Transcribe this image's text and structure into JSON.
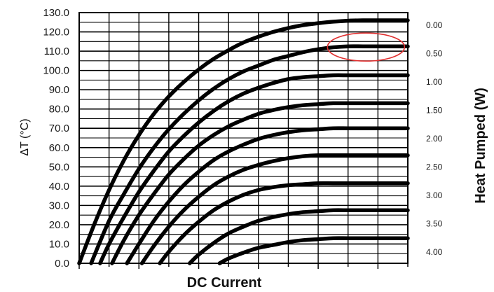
{
  "chart_data": {
    "type": "line",
    "xlabel": "DC Current",
    "ylabel": "ΔT (°C)",
    "y2label": "Heat Pumped (W)",
    "ylim": [
      0,
      130
    ],
    "yticks": [
      "0.0",
      "10.0",
      "20.0",
      "30.0",
      "40.0",
      "50.0",
      "60.0",
      "70.0",
      "80.0",
      "90.0",
      "100.0",
      "110.0",
      "120.0",
      "130.0"
    ],
    "xlim": [
      0,
      11
    ],
    "x_tick_labels_shown": false,
    "grid": true,
    "right_tick_labels": [
      "0.00",
      "0.50",
      "1.00",
      "1.50",
      "2.00",
      "2.50",
      "3.00",
      "3.50",
      "4.00"
    ],
    "series": [
      {
        "name": "0.00",
        "x": [
          0,
          0.5,
          1,
          1.5,
          2,
          2.5,
          3,
          3.5,
          4,
          4.5,
          5,
          5.5,
          6,
          6.5,
          7,
          7.5,
          8,
          8.5,
          9,
          9.5,
          10,
          10.5,
          11
        ],
        "values": [
          0,
          20,
          38,
          53.5,
          66.5,
          77.5,
          86.5,
          94,
          100.5,
          106,
          110.5,
          114.5,
          117.5,
          120,
          122,
          123.5,
          124.5,
          125.3,
          125.8,
          126,
          126,
          126,
          126
        ]
      },
      {
        "name": "0.50",
        "x": [
          0.4,
          1,
          1.5,
          2,
          2.5,
          3,
          3.5,
          4,
          4.5,
          5,
          5.5,
          6,
          6.5,
          7,
          7.5,
          8,
          8.5,
          9,
          9.5,
          10,
          10.5,
          11
        ],
        "values": [
          0,
          22,
          36,
          49,
          60,
          69.5,
          77.5,
          84.5,
          90.5,
          95.5,
          99.5,
          102.5,
          105.5,
          107.5,
          109.5,
          111,
          112,
          112.5,
          112.5,
          112.5,
          112.5,
          112.5
        ]
      },
      {
        "name": "1.00",
        "x": [
          0.7,
          1,
          1.5,
          2,
          2.5,
          3,
          3.5,
          4,
          4.5,
          5,
          5.5,
          6,
          6.5,
          7,
          7.5,
          8,
          8.5,
          9,
          9.5,
          10,
          10.5,
          11
        ],
        "values": [
          0,
          10,
          24,
          37,
          48,
          58,
          66,
          73,
          79,
          84,
          88,
          91,
          93.5,
          95.5,
          96.5,
          97,
          97.5,
          97.5,
          97.5,
          97.5,
          97.5,
          97.5
        ]
      },
      {
        "name": "1.50",
        "x": [
          1.1,
          1.5,
          2,
          2.5,
          3,
          3.5,
          4,
          4.5,
          5,
          5.5,
          6,
          6.5,
          7,
          7.5,
          8,
          8.5,
          9,
          9.5,
          10,
          10.5,
          11
        ],
        "values": [
          0,
          12,
          25,
          36,
          46,
          54,
          61,
          66.5,
          71,
          74.5,
          77.5,
          79.5,
          81,
          82,
          82.5,
          83,
          83,
          83,
          83,
          83,
          83
        ]
      },
      {
        "name": "2.00",
        "x": [
          1.6,
          2,
          2.5,
          3,
          3.5,
          4,
          4.5,
          5,
          5.5,
          6,
          6.5,
          7,
          7.5,
          8,
          8.5,
          9,
          9.5,
          10,
          10.5,
          11
        ],
        "values": [
          0,
          10,
          22,
          32,
          40.5,
          47.5,
          53.5,
          58,
          61.5,
          64.5,
          66.5,
          68,
          69,
          69.5,
          70,
          70,
          70,
          70,
          70,
          70
        ]
      },
      {
        "name": "2.50",
        "x": [
          2.1,
          2.5,
          3,
          3.5,
          4,
          4.5,
          5,
          5.5,
          6,
          6.5,
          7,
          7.5,
          8,
          8.5,
          9,
          9.5,
          10,
          10.5,
          11
        ],
        "values": [
          0,
          9,
          19,
          27.5,
          34.5,
          40.5,
          45,
          48.5,
          51,
          53,
          54.5,
          55.5,
          56,
          56,
          56,
          56,
          56,
          56,
          56
        ]
      },
      {
        "name": "3.00",
        "x": [
          2.7,
          3,
          3.5,
          4,
          4.5,
          5,
          5.5,
          6,
          6.5,
          7,
          7.5,
          8,
          8.5,
          9,
          9.5,
          10,
          10.5,
          11
        ],
        "values": [
          0,
          6,
          14.5,
          21.5,
          27.5,
          32,
          35.5,
          38,
          39.5,
          40.5,
          41,
          41.5,
          41.5,
          41.5,
          41.5,
          41.5,
          41.5,
          41.5
        ]
      },
      {
        "name": "3.50",
        "x": [
          3.7,
          4,
          4.5,
          5,
          5.5,
          6,
          6.5,
          7,
          7.5,
          8,
          8.5,
          9,
          9.5,
          10,
          10.5,
          11
        ],
        "values": [
          0,
          4.5,
          10.5,
          15.5,
          19,
          22,
          24,
          25.5,
          26.5,
          27,
          27.5,
          27.5,
          27.5,
          27.5,
          27.5,
          27.5
        ]
      },
      {
        "name": "4.00",
        "x": [
          4.7,
          5,
          5.5,
          6,
          6.5,
          7,
          7.5,
          8,
          8.5,
          9,
          9.5,
          10,
          10.5,
          11
        ],
        "values": [
          0,
          2.5,
          5.5,
          8,
          9.5,
          11,
          12,
          12.5,
          13,
          13,
          13,
          13,
          13,
          13
        ]
      }
    ],
    "highlight": {
      "series": "0.50",
      "shape": "ellipse",
      "color": "#e03030"
    }
  }
}
